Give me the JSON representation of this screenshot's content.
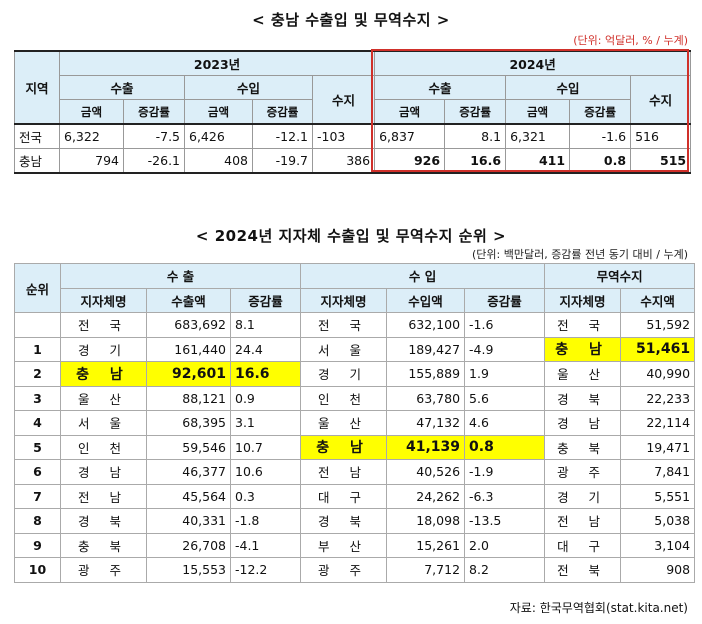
{
  "title1": "< 충남 수출입 및 무역수지 >",
  "unit1": "(단위: 억달러, % / 누계)",
  "t1": {
    "region_header": "지역",
    "y2023": "2023년",
    "y2024": "2024년",
    "export": "수출",
    "import": "수입",
    "balance": "수지",
    "amount": "금액",
    "growth": "증감률",
    "rows": [
      {
        "region": "전국",
        "e23": "6,322",
        "eg23": "-7.5",
        "i23": "6,426",
        "ig23": "-12.1",
        "b23": "-103",
        "e24": "6,837",
        "eg24": "8.1",
        "i24": "6,321",
        "ig24": "-1.6",
        "b24": "516"
      },
      {
        "region": "충남",
        "e23": "794",
        "eg23": "-26.1",
        "i23": "408",
        "ig23": "-19.7",
        "b23": "386",
        "e24": "926",
        "eg24": "16.6",
        "i24": "411",
        "ig24": "0.8",
        "b24": "515"
      }
    ]
  },
  "title2": "< 2024년 지자체 수출입 및 무역수지 순위 >",
  "unit2": "(단위: 백만달러, 증감률 전년 동기 대비 / 누계)",
  "t2": {
    "rank": "순위",
    "export": "수 출",
    "import": "수 입",
    "balance": "무역수지",
    "region": "지자체명",
    "export_amount": "수출액",
    "import_amount": "수입액",
    "growth": "증감률",
    "balance_amount": "수지액",
    "rows": [
      {
        "rank": "",
        "er": "전 국",
        "ea": "683,692",
        "eg": "8.1",
        "ir": "전 국",
        "ia": "632,100",
        "ig": "-1.6",
        "br": "전 국",
        "ba": "51,592"
      },
      {
        "rank": "1",
        "er": "경 기",
        "ea": "161,440",
        "eg": "24.4",
        "ir": "서 울",
        "ia": "189,427",
        "ig": "-4.9",
        "br": "충 남",
        "ba": "51,461"
      },
      {
        "rank": "2",
        "er": "충 남",
        "ea": "92,601",
        "eg": "16.6",
        "ir": "경 기",
        "ia": "155,889",
        "ig": "1.9",
        "br": "울 산",
        "ba": "40,990"
      },
      {
        "rank": "3",
        "er": "울 산",
        "ea": "88,121",
        "eg": "0.9",
        "ir": "인 천",
        "ia": "63,780",
        "ig": "5.6",
        "br": "경 북",
        "ba": "22,233"
      },
      {
        "rank": "4",
        "er": "서 울",
        "ea": "68,395",
        "eg": "3.1",
        "ir": "울 산",
        "ia": "47,132",
        "ig": "4.6",
        "br": "경 남",
        "ba": "22,114"
      },
      {
        "rank": "5",
        "er": "인 천",
        "ea": "59,546",
        "eg": "10.7",
        "ir": "충 남",
        "ia": "41,139",
        "ig": "0.8",
        "br": "충 북",
        "ba": "19,471"
      },
      {
        "rank": "6",
        "er": "경 남",
        "ea": "46,377",
        "eg": "10.6",
        "ir": "전 남",
        "ia": "40,526",
        "ig": "-1.9",
        "br": "광 주",
        "ba": "7,841"
      },
      {
        "rank": "7",
        "er": "전 남",
        "ea": "45,564",
        "eg": "0.3",
        "ir": "대 구",
        "ia": "24,262",
        "ig": "-6.3",
        "br": "경 기",
        "ba": "5,551"
      },
      {
        "rank": "8",
        "er": "경 북",
        "ea": "40,331",
        "eg": "-1.8",
        "ir": "경 북",
        "ia": "18,098",
        "ig": "-13.5",
        "br": "전 남",
        "ba": "5,038"
      },
      {
        "rank": "9",
        "er": "충 북",
        "ea": "26,708",
        "eg": "-4.1",
        "ir": "부 산",
        "ia": "15,261",
        "ig": "2.0",
        "br": "대 구",
        "ba": "3,104"
      },
      {
        "rank": "10",
        "er": "광 주",
        "ea": "15,553",
        "eg": "-12.2",
        "ir": "광 주",
        "ia": "7,712",
        "ig": "8.2",
        "br": "전 북",
        "ba": "908"
      }
    ]
  },
  "source": "자료: 한국무역협회(stat.kita.net)",
  "highlight_color": "#ffff00",
  "frame_color": "#d0302a"
}
